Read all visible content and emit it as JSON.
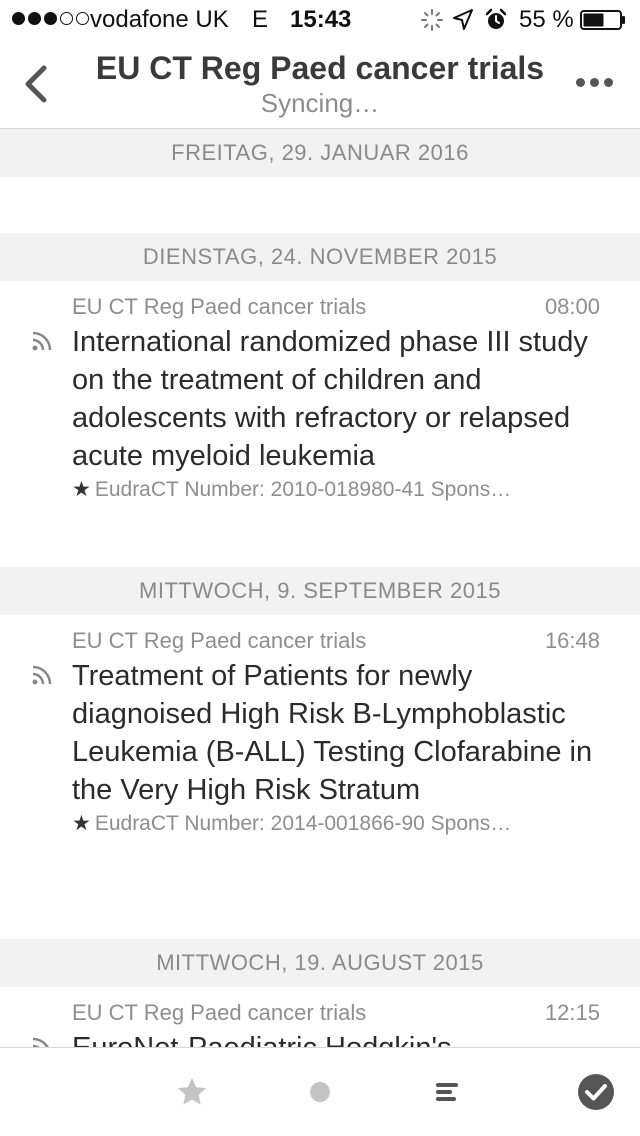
{
  "status_bar": {
    "carrier": "vodafone UK",
    "network": "E",
    "time": "15:43",
    "battery": "55 %",
    "signal_bars": 3,
    "signal_total": 5,
    "battery_level": 0.55
  },
  "nav": {
    "title": "EU CT Reg Paed cancer trials",
    "subtitle": "Syncing…"
  },
  "sections": [
    {
      "date": "FREITAG, 29. JANUAR 2016"
    },
    {
      "date": "DIENSTAG, 24. NOVEMBER 2015"
    },
    {
      "date": "MITTWOCH, 9. SEPTEMBER 2015"
    },
    {
      "date": "MITTWOCH, 19. AUGUST 2015"
    }
  ],
  "items": [
    {
      "source": "EU CT Reg Paed cancer trials",
      "time": "08:00",
      "title": "International randomized phase III study on the treatment of children and adolescents with refractory or relapsed acute myeloid leukemia",
      "snippet": "EudraCT Number: 2010-018980-41 Spons…"
    },
    {
      "source": "EU CT Reg Paed cancer trials",
      "time": "16:48",
      "title": "Treatment of Patients for newly diagnoised High Risk B-Lymphoblastic Leukemia (B-ALL) Testing Clofarabine in the Very High Risk Stratum",
      "snippet": "EudraCT Number: 2014-001866-90 Spons…"
    },
    {
      "source": "EU CT Reg Paed cancer trials",
      "time": "12:15",
      "title": "EuroNet-Paediatric Hodgkin's"
    }
  ],
  "icons": {
    "back": "chevron-left-icon",
    "more": "ellipsis-icon",
    "feed": "rss-icon",
    "star": "star-icon",
    "unread": "circle-icon",
    "list": "list-icon",
    "mark_read": "checkmark-icon"
  },
  "colors": {
    "header_bg": "#f2f2f2",
    "text_primary": "#2b2b2b",
    "text_secondary": "#8e8e8e",
    "toolbar_icon": "#c4c4c4",
    "toolbar_icon_active": "#555555"
  }
}
